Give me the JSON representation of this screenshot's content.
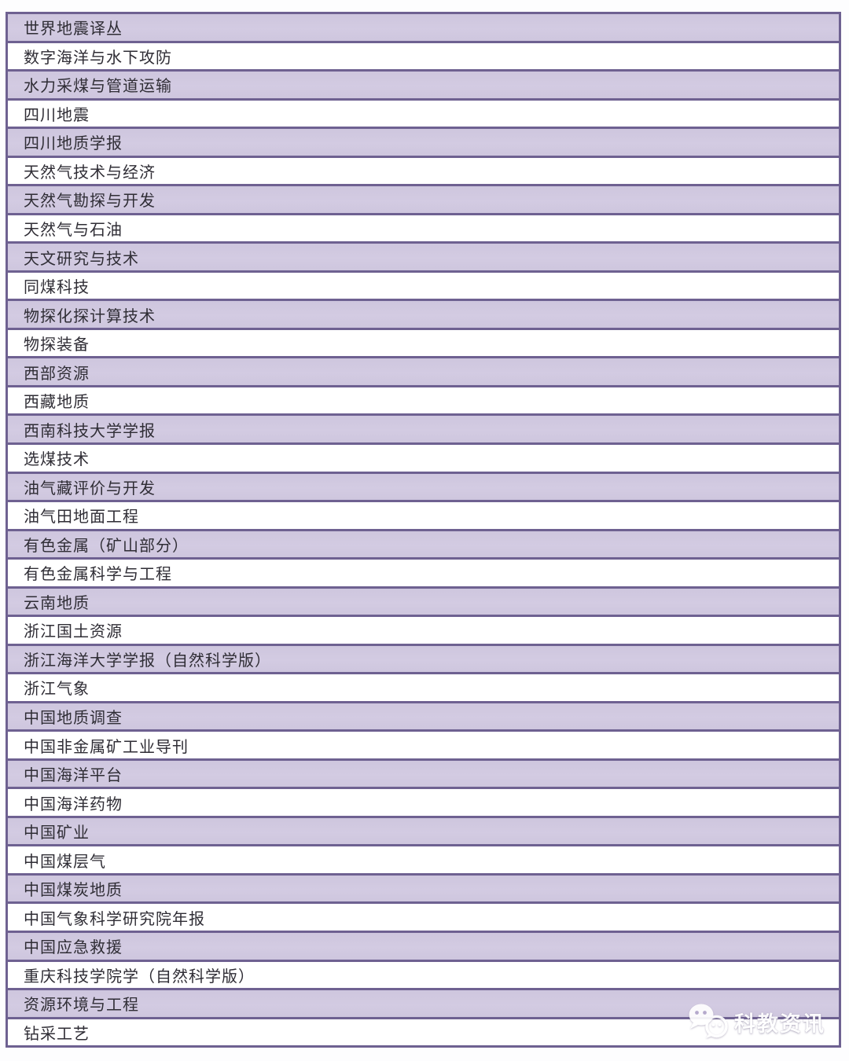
{
  "table": {
    "row_fill_odd": "#cec6de",
    "row_fill_even": "#ffffff",
    "border_color": "#6e6191",
    "text_color": "#2f2d35",
    "rows": [
      "世界地震译丛",
      "数字海洋与水下攻防",
      "水力采煤与管道运输",
      "四川地震",
      "四川地质学报",
      "天然气技术与经济",
      "天然气勘探与开发",
      "天然气与石油",
      "天文研究与技术",
      "同煤科技",
      "物探化探计算技术",
      "物探装备",
      "西部资源",
      "西藏地质",
      "西南科技大学学报",
      "选煤技术",
      "油气藏评价与开发",
      "油气田地面工程",
      "有色金属（矿山部分）",
      "有色金属科学与工程",
      "云南地质",
      "浙江国土资源",
      "浙江海洋大学学报（自然科学版）",
      "浙江气象",
      "中国地质调查",
      "中国非金属矿工业导刊",
      "中国海洋平台",
      "中国海洋药物",
      "中国矿业",
      "中国煤层气",
      "中国煤炭地质",
      "中国气象科学研究院年报",
      "中国应急救援",
      "重庆科技学院学（自然科学版）",
      "资源环境与工程",
      "钻采工艺"
    ]
  },
  "watermark": {
    "label": "科教资讯",
    "icon": "wechat-icon",
    "color": "#ffffff"
  }
}
